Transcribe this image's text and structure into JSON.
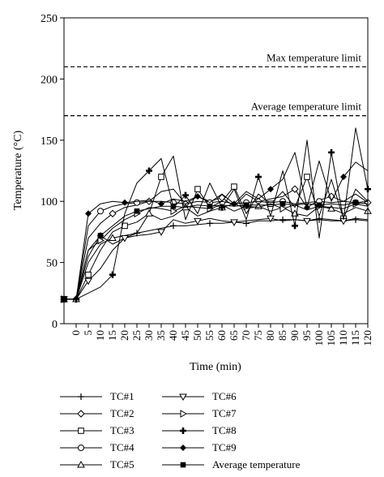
{
  "chart_data": {
    "type": "line",
    "xlabel": "Time (min)",
    "ylabel": "Temperature (°C)",
    "xlim": [
      -5,
      120
    ],
    "ylim": [
      0,
      250
    ],
    "xticks": [
      0,
      5,
      10,
      15,
      20,
      25,
      30,
      35,
      40,
      45,
      50,
      55,
      60,
      65,
      70,
      75,
      80,
      85,
      90,
      95,
      100,
      105,
      110,
      115,
      120
    ],
    "yticks": [
      0,
      50,
      100,
      150,
      200,
      250
    ],
    "grid": false,
    "legend_position": "below",
    "reference_lines": [
      {
        "label": "Max temperature limit",
        "y": 210
      },
      {
        "label": "Average temperature limit",
        "y": 170
      }
    ],
    "series": [
      {
        "name": "TC#1",
        "marker": "plus",
        "x": [
          -5,
          0,
          5,
          10,
          15,
          20,
          25,
          30,
          35,
          40,
          45,
          50,
          55,
          60,
          65,
          70,
          75,
          80,
          85,
          90,
          95,
          100,
          105,
          110,
          115,
          120
        ],
        "y": [
          20,
          20,
          55,
          72,
          65,
          70,
          74,
          76,
          78,
          80,
          80,
          81,
          82,
          82,
          83,
          82,
          84,
          84,
          85,
          85,
          84,
          85,
          84,
          84,
          85,
          84
        ]
      },
      {
        "name": "TC#2",
        "marker": "diamond-open",
        "x": [
          -5,
          0,
          5,
          10,
          15,
          20,
          25,
          30,
          35,
          40,
          45,
          50,
          55,
          60,
          65,
          70,
          75,
          80,
          85,
          90,
          95,
          100,
          105,
          110,
          115,
          120
        ],
        "y": [
          20,
          20,
          70,
          82,
          90,
          95,
          97,
          100,
          108,
          110,
          98,
          104,
          100,
          103,
          96,
          106,
          100,
          102,
          104,
          110,
          95,
          101,
          104,
          100,
          106,
          99
        ]
      },
      {
        "name": "TC#3",
        "marker": "square-open",
        "x": [
          -5,
          0,
          5,
          10,
          15,
          20,
          25,
          30,
          35,
          40,
          45,
          50,
          55,
          60,
          65,
          70,
          75,
          80,
          85,
          90,
          95,
          100,
          105,
          110,
          115,
          120
        ],
        "y": [
          20,
          20,
          40,
          60,
          75,
          80,
          83,
          90,
          120,
          137,
          85,
          110,
          95,
          100,
          112,
          90,
          106,
          98,
          108,
          95,
          120,
          88,
          118,
          86,
          110,
          100
        ]
      },
      {
        "name": "TC#4",
        "marker": "circle-open",
        "x": [
          -5,
          0,
          5,
          10,
          15,
          20,
          25,
          30,
          35,
          40,
          45,
          50,
          55,
          60,
          65,
          70,
          75,
          80,
          85,
          90,
          95,
          100,
          105,
          110,
          115,
          120
        ],
        "y": [
          20,
          20,
          80,
          92,
          96,
          98,
          99,
          100,
          100,
          99,
          98,
          100,
          99,
          100,
          98,
          99,
          100,
          99,
          100,
          98,
          99,
          100,
          99,
          100,
          99,
          100
        ]
      },
      {
        "name": "TC#5",
        "marker": "triangle-up-open",
        "x": [
          -5,
          0,
          5,
          10,
          15,
          20,
          25,
          30,
          35,
          40,
          45,
          50,
          55,
          60,
          65,
          70,
          75,
          80,
          85,
          90,
          95,
          100,
          105,
          110,
          115,
          120
        ],
        "y": [
          20,
          20,
          50,
          65,
          70,
          72,
          74,
          90,
          85,
          88,
          95,
          88,
          92,
          95,
          98,
          94,
          96,
          92,
          95,
          90,
          88,
          96,
          94,
          90,
          95,
          92
        ]
      },
      {
        "name": "TC#6",
        "marker": "triangle-down-open",
        "x": [
          -5,
          0,
          5,
          10,
          15,
          20,
          25,
          30,
          35,
          40,
          45,
          50,
          55,
          60,
          65,
          70,
          75,
          80,
          85,
          90,
          95,
          100,
          105,
          110,
          115,
          120
        ],
        "y": [
          20,
          20,
          35,
          45,
          60,
          70,
          72,
          73,
          75,
          85,
          82,
          84,
          86,
          84,
          83,
          84,
          85,
          86,
          84,
          85,
          84,
          86,
          85,
          84,
          86,
          85
        ]
      },
      {
        "name": "TC#7",
        "marker": "triangle-right-open",
        "x": [
          -5,
          0,
          5,
          10,
          15,
          20,
          25,
          30,
          35,
          40,
          45,
          50,
          55,
          60,
          65,
          70,
          75,
          80,
          85,
          90,
          95,
          100,
          105,
          110,
          115,
          120
        ],
        "y": [
          20,
          20,
          60,
          68,
          78,
          85,
          90,
          95,
          94,
          92,
          96,
          95,
          94,
          97,
          92,
          96,
          95,
          98,
          94,
          97,
          93,
          96,
          95,
          94,
          98,
          96
        ]
      },
      {
        "name": "TC#8",
        "marker": "plus-bold",
        "x": [
          -5,
          0,
          5,
          10,
          15,
          20,
          25,
          30,
          35,
          40,
          45,
          50,
          55,
          60,
          65,
          70,
          75,
          80,
          85,
          90,
          95,
          100,
          105,
          110,
          115,
          120
        ],
        "y": [
          20,
          20,
          25,
          30,
          40,
          90,
          115,
          125,
          135,
          95,
          105,
          90,
          115,
          95,
          110,
          85,
          120,
          88,
          125,
          80,
          150,
          70,
          140,
          85,
          160,
          110
        ]
      },
      {
        "name": "TC#9",
        "marker": "diamond-filled",
        "x": [
          -5,
          0,
          5,
          10,
          15,
          20,
          25,
          30,
          35,
          40,
          45,
          50,
          55,
          60,
          65,
          70,
          75,
          80,
          85,
          90,
          95,
          100,
          105,
          110,
          115,
          120
        ],
        "y": [
          20,
          20,
          90,
          98,
          100,
          99,
          100,
          101,
          98,
          102,
          100,
          104,
          99,
          106,
          98,
          108,
          102,
          110,
          118,
          140,
          95,
          133,
          100,
          120,
          132,
          125
        ]
      },
      {
        "name": "Average temperature",
        "marker": "square-filled",
        "x": [
          -5,
          0,
          5,
          10,
          15,
          20,
          25,
          30,
          35,
          40,
          45,
          50,
          55,
          60,
          65,
          70,
          75,
          80,
          85,
          90,
          95,
          100,
          105,
          110,
          115,
          120
        ],
        "y": [
          20,
          20,
          60,
          72,
          80,
          88,
          92,
          94,
          96,
          96,
          95,
          97,
          96,
          97,
          96,
          97,
          97,
          97,
          98,
          97,
          98,
          97,
          98,
          97,
          99,
          98
        ]
      }
    ]
  }
}
